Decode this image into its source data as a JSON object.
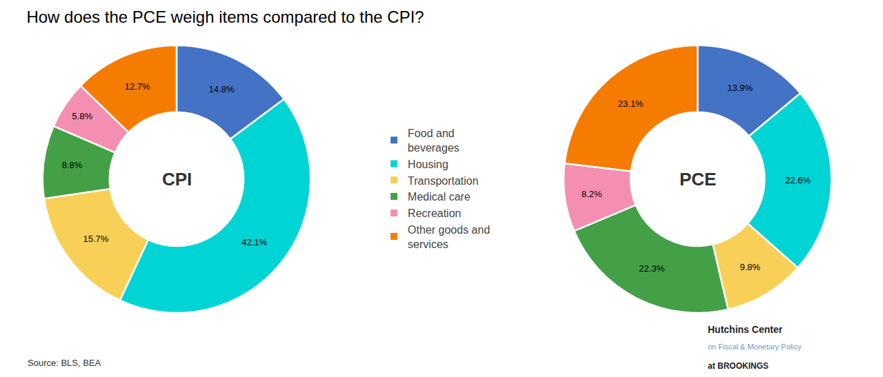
{
  "chart_data": {
    "type": "pie",
    "title": "How does the PCE weigh items compared to the CPI?",
    "categories": [
      "Food and\nbeverages",
      "Housing",
      "Transportation",
      "Medical care",
      "Recreation",
      "Other goods and\nservices"
    ],
    "colors": [
      "#4472C4",
      "#00D4D4",
      "#F9D057",
      "#43A047",
      "#F48FB1",
      "#F57C00"
    ],
    "series": [
      {
        "name": "CPI",
        "values": [
          14.8,
          42.1,
          15.7,
          8.8,
          5.8,
          12.7
        ],
        "value_labels": [
          "14.8%",
          "42.1%",
          "15.7%",
          "8.8%",
          "5.8%",
          "12.7%"
        ]
      },
      {
        "name": "PCE",
        "values": [
          13.9,
          22.6,
          9.8,
          22.3,
          8.2,
          23.1
        ],
        "value_labels": [
          "13.9%",
          "22.6%",
          "9.8%",
          "22.3%",
          "8.2%",
          "23.1%"
        ]
      }
    ],
    "data_labels": true,
    "legend": "center",
    "annotations": [
      "Source: BLS, BEA",
      "Hutchins Center",
      "on Fiscal & Monetary Policy",
      "at BROOKINGS"
    ]
  }
}
